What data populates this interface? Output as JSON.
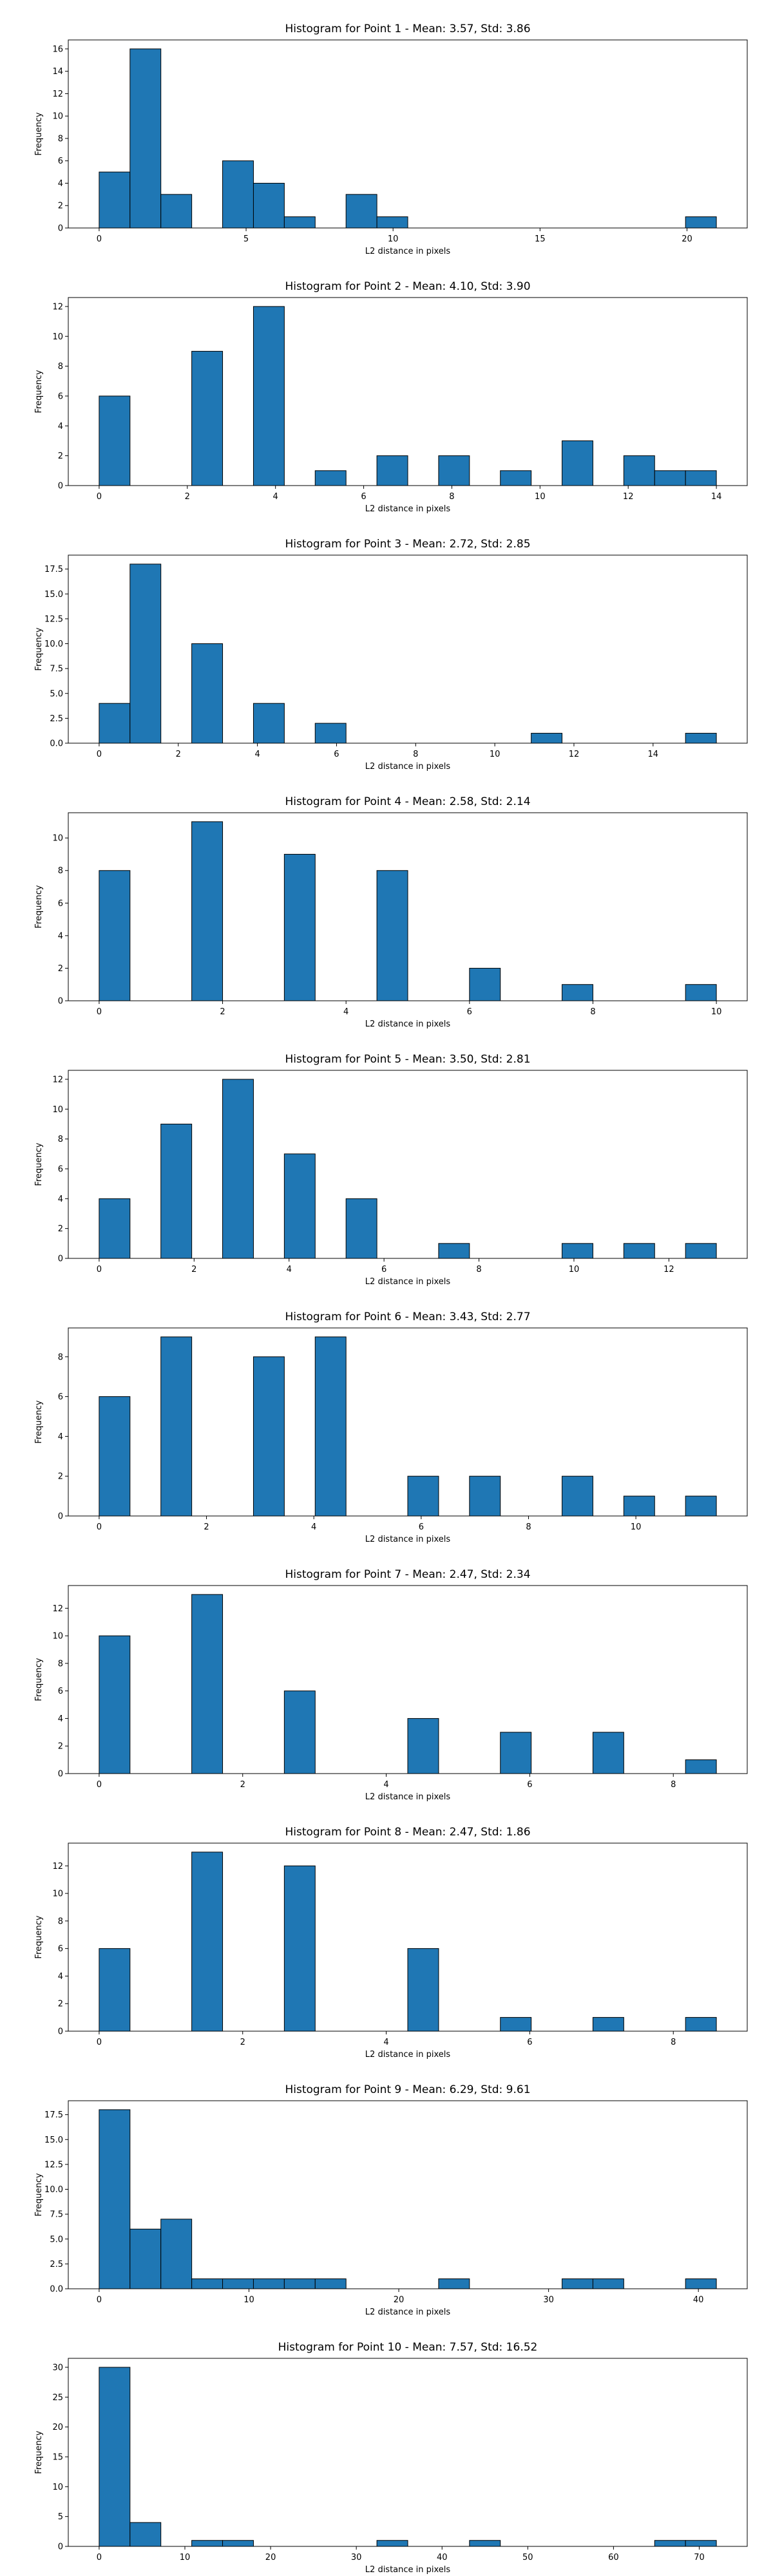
{
  "colors": {
    "bar_fill": "#1f77b4",
    "bar_edge": "#000000"
  },
  "chart_data": [
    {
      "type": "bar",
      "title": "Histogram for Point 1 - Mean: 3.57, Std: 3.86",
      "xlabel": "L2 distance in pixels",
      "ylabel": "Frequency",
      "xlim": [
        -1.05,
        22.05
      ],
      "ylim": [
        0,
        16.8
      ],
      "xticks": [
        0,
        5,
        10,
        15,
        20
      ],
      "yticks": [
        0,
        2,
        4,
        6,
        8,
        10,
        12,
        14,
        16
      ],
      "bin_edges": [
        0,
        1.05,
        2.1,
        3.15,
        4.2,
        5.25,
        6.3,
        7.35,
        8.4,
        9.45,
        10.5,
        11.55,
        12.6,
        13.65,
        14.7,
        15.75,
        16.8,
        17.85,
        18.9,
        19.95,
        21.0
      ],
      "values": [
        5,
        16,
        3,
        0,
        6,
        4,
        1,
        0,
        3,
        1,
        0,
        0,
        0,
        0,
        0,
        0,
        0,
        0,
        0,
        1
      ]
    },
    {
      "type": "bar",
      "title": "Histogram for Point 2 - Mean: 4.10, Std: 3.90",
      "xlabel": "L2 distance in pixels",
      "ylabel": "Frequency",
      "xlim": [
        -0.7,
        14.7
      ],
      "ylim": [
        0,
        12.6
      ],
      "xticks": [
        0,
        2,
        4,
        6,
        8,
        10,
        12,
        14
      ],
      "yticks": [
        0,
        2,
        4,
        6,
        8,
        10,
        12
      ],
      "bin_edges": [
        0,
        0.7,
        1.4,
        2.1,
        2.8,
        3.5,
        4.2,
        4.9,
        5.6,
        6.3,
        7.0,
        7.7,
        8.4,
        9.1,
        9.8,
        10.5,
        11.2,
        11.9,
        12.6,
        13.3,
        14.0
      ],
      "values": [
        6,
        0,
        0,
        9,
        0,
        12,
        0,
        1,
        0,
        2,
        0,
        2,
        0,
        1,
        0,
        3,
        0,
        2,
        1,
        1
      ]
    },
    {
      "type": "bar",
      "title": "Histogram for Point 3 - Mean: 2.72, Std: 2.85",
      "xlabel": "L2 distance in pixels",
      "ylabel": "Frequency",
      "xlim": [
        -0.78,
        16.38
      ],
      "ylim": [
        0,
        18.9
      ],
      "xticks": [
        0,
        2,
        4,
        6,
        8,
        10,
        12,
        14
      ],
      "yticks": [
        0.0,
        2.5,
        5.0,
        7.5,
        10.0,
        12.5,
        15.0,
        17.5
      ],
      "ytick_labels": [
        "0.0",
        "2.5",
        "5.0",
        "7.5",
        "10.0",
        "12.5",
        "15.0",
        "17.5"
      ],
      "bin_edges": [
        0,
        0.78,
        1.56,
        2.34,
        3.12,
        3.9,
        4.68,
        5.46,
        6.24,
        7.02,
        7.8,
        8.58,
        9.36,
        10.14,
        10.92,
        11.7,
        12.48,
        13.26,
        14.04,
        14.82,
        15.6
      ],
      "values": [
        4,
        18,
        0,
        10,
        0,
        4,
        0,
        2,
        0,
        0,
        0,
        0,
        0,
        0,
        1,
        0,
        0,
        0,
        0,
        1
      ]
    },
    {
      "type": "bar",
      "title": "Histogram for Point 4 - Mean: 2.58, Std: 2.14",
      "xlabel": "L2 distance in pixels",
      "ylabel": "Frequency",
      "xlim": [
        -0.5,
        10.5
      ],
      "ylim": [
        0,
        11.55
      ],
      "xticks": [
        0,
        2,
        4,
        6,
        8,
        10
      ],
      "yticks": [
        0,
        2,
        4,
        6,
        8,
        10
      ],
      "bin_edges": [
        0,
        0.5,
        1.0,
        1.5,
        2.0,
        2.5,
        3.0,
        3.5,
        4.0,
        4.5,
        5.0,
        5.5,
        6.0,
        6.5,
        7.0,
        7.5,
        8.0,
        8.5,
        9.0,
        9.5,
        10.0
      ],
      "values": [
        8,
        0,
        0,
        11,
        0,
        0,
        9,
        0,
        0,
        8,
        0,
        0,
        2,
        0,
        0,
        1,
        0,
        0,
        0,
        1
      ]
    },
    {
      "type": "bar",
      "title": "Histogram for Point 5 - Mean: 3.50, Std: 2.81",
      "xlabel": "L2 distance in pixels",
      "ylabel": "Frequency",
      "xlim": [
        -0.65,
        13.65
      ],
      "ylim": [
        0,
        12.6
      ],
      "xticks": [
        0,
        2,
        4,
        6,
        8,
        10,
        12
      ],
      "yticks": [
        0,
        2,
        4,
        6,
        8,
        10,
        12
      ],
      "bin_edges": [
        0,
        0.65,
        1.3,
        1.95,
        2.6,
        3.25,
        3.9,
        4.55,
        5.2,
        5.85,
        6.5,
        7.15,
        7.8,
        8.45,
        9.1,
        9.75,
        10.4,
        11.05,
        11.7,
        12.35,
        13.0
      ],
      "values": [
        4,
        0,
        9,
        0,
        12,
        0,
        7,
        0,
        4,
        0,
        0,
        1,
        0,
        0,
        0,
        1,
        0,
        1,
        0,
        1
      ]
    },
    {
      "type": "bar",
      "title": "Histogram for Point 6 - Mean: 3.43, Std: 2.77",
      "xlabel": "L2 distance in pixels",
      "ylabel": "Frequency",
      "xlim": [
        -0.575,
        12.075
      ],
      "ylim": [
        0,
        9.45
      ],
      "xticks": [
        0,
        2,
        4,
        6,
        8,
        10
      ],
      "yticks": [
        0,
        2,
        4,
        6,
        8
      ],
      "bin_edges": [
        0,
        0.575,
        1.15,
        1.725,
        2.3,
        2.875,
        3.45,
        4.025,
        4.6,
        5.175,
        5.75,
        6.325,
        6.9,
        7.475,
        8.05,
        8.625,
        9.2,
        9.775,
        10.35,
        10.925,
        11.5
      ],
      "values": [
        6,
        0,
        9,
        0,
        0,
        8,
        0,
        9,
        0,
        0,
        2,
        0,
        2,
        0,
        0,
        2,
        0,
        1,
        0,
        1
      ]
    },
    {
      "type": "bar",
      "title": "Histogram for Point 7 - Mean: 2.47, Std: 2.34",
      "xlabel": "L2 distance in pixels",
      "ylabel": "Frequency",
      "xlim": [
        -0.43,
        9.03
      ],
      "ylim": [
        0,
        13.65
      ],
      "xticks": [
        0,
        2,
        4,
        6,
        8
      ],
      "yticks": [
        0,
        2,
        4,
        6,
        8,
        10,
        12
      ],
      "bin_edges": [
        0,
        0.43,
        0.86,
        1.29,
        1.72,
        2.15,
        2.58,
        3.01,
        3.44,
        3.87,
        4.3,
        4.73,
        5.16,
        5.59,
        6.02,
        6.45,
        6.88,
        7.31,
        7.74,
        8.17,
        8.6
      ],
      "values": [
        10,
        0,
        0,
        13,
        0,
        0,
        6,
        0,
        0,
        0,
        4,
        0,
        0,
        3,
        0,
        0,
        3,
        0,
        0,
        1
      ]
    },
    {
      "type": "bar",
      "title": "Histogram for Point 8 - Mean: 2.47, Std: 1.86",
      "xlabel": "L2 distance in pixels",
      "ylabel": "Frequency",
      "xlim": [
        -0.43,
        9.03
      ],
      "ylim": [
        0,
        13.65
      ],
      "xticks": [
        0,
        2,
        4,
        6,
        8
      ],
      "yticks": [
        0,
        2,
        4,
        6,
        8,
        10,
        12
      ],
      "bin_edges": [
        0,
        0.43,
        0.86,
        1.29,
        1.72,
        2.15,
        2.58,
        3.01,
        3.44,
        3.87,
        4.3,
        4.73,
        5.16,
        5.59,
        6.02,
        6.45,
        6.88,
        7.31,
        7.74,
        8.17,
        8.6
      ],
      "values": [
        6,
        0,
        0,
        13,
        0,
        0,
        12,
        0,
        0,
        0,
        6,
        0,
        0,
        1,
        0,
        0,
        1,
        0,
        0,
        1
      ]
    },
    {
      "type": "bar",
      "title": "Histogram for Point 9 - Mean: 6.29, Std: 9.61",
      "xlabel": "L2 distance in pixels",
      "ylabel": "Frequency",
      "xlim": [
        -2.06,
        43.26
      ],
      "ylim": [
        0,
        18.9
      ],
      "xticks": [
        0,
        10,
        20,
        30,
        40
      ],
      "yticks": [
        0.0,
        2.5,
        5.0,
        7.5,
        10.0,
        12.5,
        15.0,
        17.5
      ],
      "ytick_labels": [
        "0.0",
        "2.5",
        "5.0",
        "7.5",
        "10.0",
        "12.5",
        "15.0",
        "17.5"
      ],
      "bin_edges": [
        0,
        2.06,
        4.12,
        6.18,
        8.24,
        10.3,
        12.36,
        14.42,
        16.48,
        18.54,
        20.6,
        22.66,
        24.72,
        26.78,
        28.84,
        30.9,
        32.96,
        35.02,
        37.08,
        39.14,
        41.2
      ],
      "values": [
        18,
        6,
        7,
        1,
        1,
        1,
        1,
        1,
        0,
        0,
        0,
        1,
        0,
        0,
        0,
        1,
        1,
        0,
        0,
        1
      ]
    },
    {
      "type": "bar",
      "title": "Histogram for Point 10 - Mean: 7.57, Std: 16.52",
      "xlabel": "L2 distance in pixels",
      "ylabel": "Frequency",
      "xlim": [
        -3.6,
        75.6
      ],
      "ylim": [
        0,
        31.5
      ],
      "xticks": [
        0,
        10,
        20,
        30,
        40,
        50,
        60,
        70
      ],
      "yticks": [
        0,
        5,
        10,
        15,
        20,
        25,
        30
      ],
      "bin_edges": [
        0,
        3.6,
        7.2,
        10.8,
        14.4,
        18.0,
        21.6,
        25.2,
        28.8,
        32.4,
        36.0,
        39.6,
        43.2,
        46.8,
        50.4,
        54.0,
        57.6,
        61.2,
        64.8,
        68.4,
        72.0
      ],
      "values": [
        30,
        4,
        0,
        1,
        1,
        0,
        0,
        0,
        0,
        1,
        0,
        0,
        1,
        0,
        0,
        0,
        0,
        0,
        1,
        1
      ]
    }
  ]
}
